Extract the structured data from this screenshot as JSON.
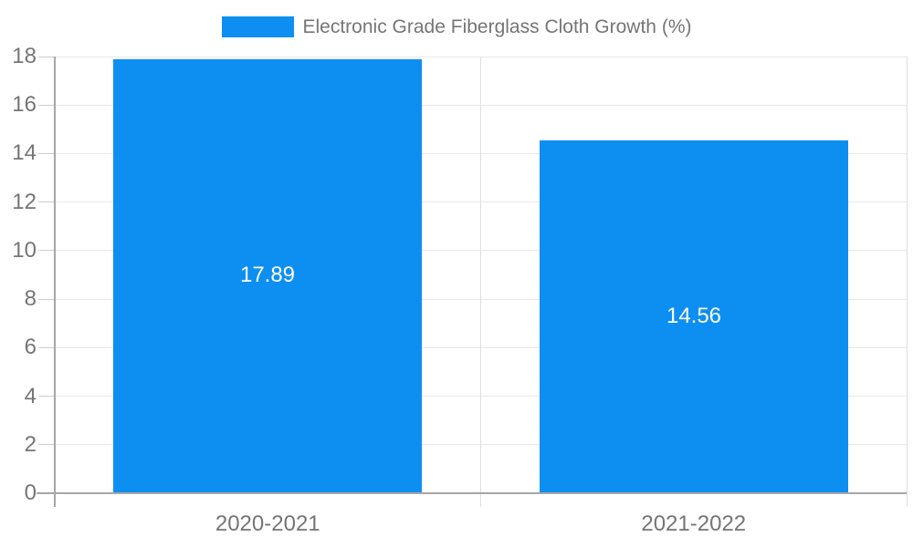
{
  "chart_data": {
    "type": "bar",
    "title": "Electronic Grade Fiberglass Cloth Growth (%)",
    "legend": {
      "position": "top",
      "entries": [
        {
          "label": "Electronic Grade Fiberglass Cloth Growth (%)"
        }
      ]
    },
    "categories": [
      "2020-2021",
      "2021-2022"
    ],
    "series": [
      {
        "name": "Electronic Grade Fiberglass Cloth Growth (%)",
        "values": [
          17.89,
          14.56
        ],
        "data_labels": [
          "17.89",
          "14.56"
        ]
      }
    ],
    "xlabel": "",
    "ylabel": "",
    "ylim": [
      0,
      18
    ],
    "yticks": [
      0,
      2,
      4,
      6,
      8,
      10,
      12,
      14,
      16,
      18
    ],
    "grid": true,
    "colors": {
      "bar": "#0d8ff2",
      "grid_h": "#e8e8e8",
      "grid_v": "#dedede",
      "axis": "#a6a6a6",
      "tick": "#cccccc",
      "text": "#757575",
      "data_label": "#ffffff",
      "background": "#ffffff"
    }
  }
}
